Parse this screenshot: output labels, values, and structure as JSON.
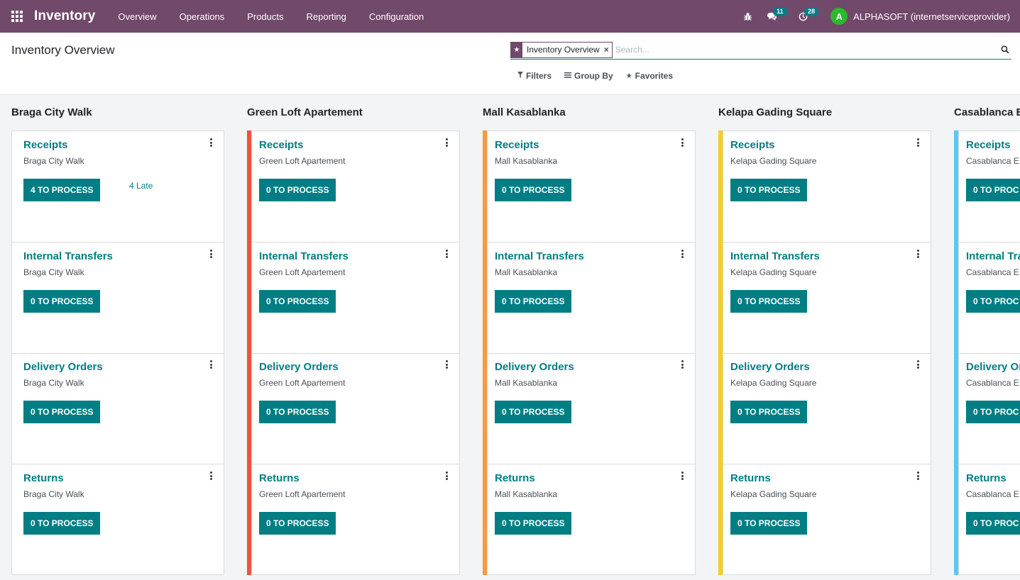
{
  "app": {
    "name": "Inventory",
    "menu": [
      "Overview",
      "Operations",
      "Products",
      "Reporting",
      "Configuration"
    ]
  },
  "systray": {
    "bug_icon": "bug-icon",
    "messages_count": "11",
    "activities_count": "28",
    "user_initial": "A",
    "user_name": "ALPHASOFT (internetserviceprovider)",
    "avatar_color": "#2db92d"
  },
  "control_panel": {
    "title": "Inventory Overview",
    "facet_label": "Inventory Overview",
    "search_placeholder": "Search...",
    "filters_label": "Filters",
    "group_by_label": "Group By",
    "favorites_label": "Favorites"
  },
  "colors": {
    "navbar": "#71496a",
    "primary": "#017e84"
  },
  "columns": [
    {
      "name": "Braga City Walk",
      "accent": "",
      "cards": [
        {
          "title": "Receipts",
          "subtitle": "Braga City Walk",
          "button": "4 TO PROCESS",
          "late": "4 Late"
        },
        {
          "title": "Internal Transfers",
          "subtitle": "Braga City Walk",
          "button": "0 TO PROCESS",
          "late": ""
        },
        {
          "title": "Delivery Orders",
          "subtitle": "Braga City Walk",
          "button": "0 TO PROCESS",
          "late": ""
        },
        {
          "title": "Returns",
          "subtitle": "Braga City Walk",
          "button": "0 TO PROCESS",
          "late": ""
        }
      ]
    },
    {
      "name": "Green Loft Apartement",
      "accent": "#f0533f",
      "cards": [
        {
          "title": "Receipts",
          "subtitle": "Green Loft Apartement",
          "button": "0 TO PROCESS",
          "late": ""
        },
        {
          "title": "Internal Transfers",
          "subtitle": "Green Loft Apartement",
          "button": "0 TO PROCESS",
          "late": ""
        },
        {
          "title": "Delivery Orders",
          "subtitle": "Green Loft Apartement",
          "button": "0 TO PROCESS",
          "late": ""
        },
        {
          "title": "Returns",
          "subtitle": "Green Loft Apartement",
          "button": "0 TO PROCESS",
          "late": ""
        }
      ]
    },
    {
      "name": "Mall Kasablanka",
      "accent": "#f49b43",
      "cards": [
        {
          "title": "Receipts",
          "subtitle": "Mall Kasablanka",
          "button": "0 TO PROCESS",
          "late": ""
        },
        {
          "title": "Internal Transfers",
          "subtitle": "Mall Kasablanka",
          "button": "0 TO PROCESS",
          "late": ""
        },
        {
          "title": "Delivery Orders",
          "subtitle": "Mall Kasablanka",
          "button": "0 TO PROCESS",
          "late": ""
        },
        {
          "title": "Returns",
          "subtitle": "Mall Kasablanka",
          "button": "0 TO PROCESS",
          "late": ""
        }
      ]
    },
    {
      "name": "Kelapa Gading Square",
      "accent": "#f7cd1f",
      "cards": [
        {
          "title": "Receipts",
          "subtitle": "Kelapa Gading Square",
          "button": "0 TO PROCESS",
          "late": ""
        },
        {
          "title": "Internal Transfers",
          "subtitle": "Kelapa Gading Square",
          "button": "0 TO PROCESS",
          "late": ""
        },
        {
          "title": "Delivery Orders",
          "subtitle": "Kelapa Gading Square",
          "button": "0 TO PROCESS",
          "late": ""
        },
        {
          "title": "Returns",
          "subtitle": "Kelapa Gading Square",
          "button": "0 TO PROCESS",
          "late": ""
        }
      ]
    },
    {
      "name": "Casablanca E",
      "accent": "#5ac8f0",
      "cards": [
        {
          "title": "Receipts",
          "subtitle": "Casablanca E",
          "button": "0 TO PROC",
          "late": ""
        },
        {
          "title": "Internal Tra",
          "subtitle": "Casablanca E",
          "button": "0 TO PROC",
          "late": ""
        },
        {
          "title": "Delivery Or",
          "subtitle": "Casablanca E",
          "button": "0 TO PROC",
          "late": ""
        },
        {
          "title": "Returns",
          "subtitle": "Casablanca E",
          "button": "0 TO PROC",
          "late": ""
        }
      ]
    }
  ]
}
